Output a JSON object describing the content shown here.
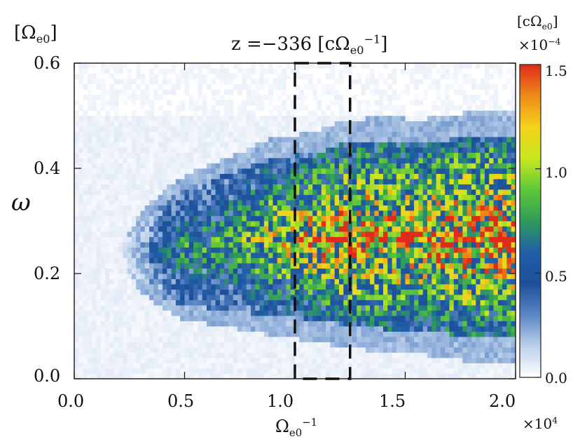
{
  "chart_data": {
    "type": "heatmap",
    "title": "z =−336 [cΩ",
    "title_unit_sub": "e0",
    "title_unit_sup": "−1",
    "title_unit_close": "]",
    "ylabel": "ω",
    "yunit": "[Ω",
    "yunit_sub": "e0",
    "yunit_close": "]",
    "xlabel": "Ω",
    "xlabel_sub": "e0",
    "xlabel_sup": "−1",
    "x_multiplier": "×10",
    "x_multiplier_exp": "4",
    "xlim": [
      0.0,
      2.0
    ],
    "ylim": [
      0.0,
      0.6
    ],
    "xticks": [
      "0.0",
      "0.5",
      "1.0",
      "1.5",
      "2.0"
    ],
    "yticks": [
      "0.0",
      "0.2",
      "0.4",
      "0.6"
    ],
    "colorbar": {
      "unit_open": "[cΩ",
      "unit_sub": "e0",
      "unit_close": "]",
      "multiplier": "×10",
      "multiplier_exp": "−4",
      "range": [
        0.0,
        1.5
      ],
      "ticks": [
        "0.0",
        "0.5",
        "1.0",
        "1.5"
      ],
      "colors": [
        "#ffffff",
        "#bcd0ea",
        "#5a86c4",
        "#1d4f9a",
        "#1f5fa8",
        "#2e9c5a",
        "#5fc838",
        "#c7e81e",
        "#f6d21a",
        "#f08a18",
        "#e02a1a"
      ]
    },
    "highlight_box": {
      "x_range": [
        1.0,
        1.25
      ],
      "y_range": [
        0.0,
        0.6
      ],
      "style": "dashed"
    },
    "envelope": {
      "x": [
        0.0,
        0.1,
        0.2,
        0.3,
        0.4,
        0.5,
        0.6,
        0.7,
        0.8,
        0.9,
        1.0,
        1.1,
        1.2,
        1.3,
        1.4,
        1.5,
        1.6,
        1.7,
        1.8,
        1.9,
        2.0
      ],
      "center": [
        0.24,
        0.24,
        0.24,
        0.24,
        0.245,
        0.25,
        0.255,
        0.26,
        0.265,
        0.27,
        0.27,
        0.27,
        0.275,
        0.275,
        0.275,
        0.27,
        0.27,
        0.27,
        0.27,
        0.27,
        0.27
      ],
      "half_width": [
        0.0,
        0.0,
        0.0,
        0.06,
        0.09,
        0.11,
        0.12,
        0.13,
        0.14,
        0.15,
        0.155,
        0.16,
        0.17,
        0.175,
        0.18,
        0.18,
        0.18,
        0.185,
        0.19,
        0.19,
        0.19
      ],
      "peak": [
        0.0,
        0.0,
        0.0,
        0.25,
        0.55,
        0.75,
        0.75,
        0.8,
        0.95,
        1.1,
        1.2,
        1.3,
        1.35,
        1.4,
        1.4,
        1.35,
        1.35,
        1.4,
        1.45,
        1.45,
        1.45
      ]
    }
  }
}
